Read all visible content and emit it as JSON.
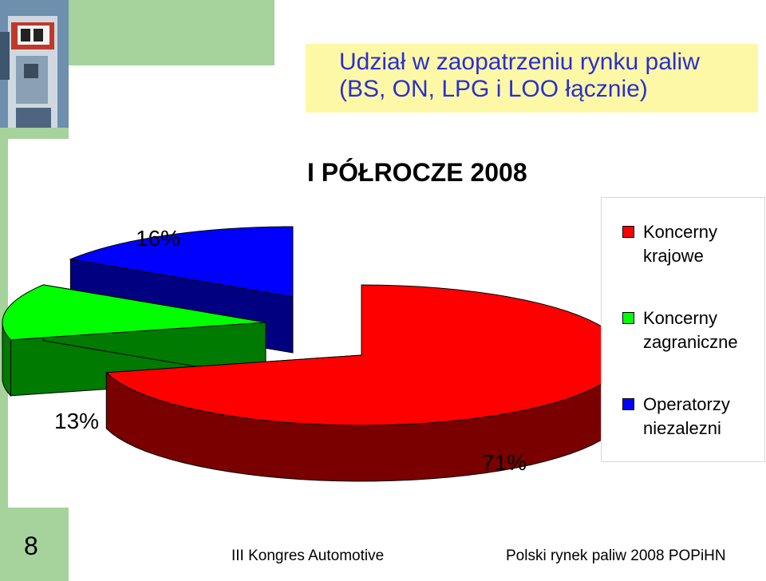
{
  "title": {
    "line1": "Udział w zaopatrzeniu rynku paliw",
    "line2": "(BS, ON, LPG i LOO łącznie)"
  },
  "subtitle": "I PÓŁROCZE 2008",
  "chart_data": {
    "type": "pie",
    "title": "Udział w zaopatrzeniu rynku paliw (BS, ON, LPG i LOO łącznie)",
    "subtitle": "I PÓŁROCZE 2008",
    "categories": [
      "Koncerny krajowe",
      "Koncerny zagraniczne",
      "Operatorzy niezalezni"
    ],
    "values": [
      71,
      13,
      16
    ],
    "labels": [
      "71%",
      "13%",
      "16%"
    ],
    "colors": [
      "#ff0000",
      "#00ff00",
      "#0000ff"
    ],
    "side_colors": [
      "#7a0000",
      "#007a00",
      "#000080"
    ],
    "legend_position": "right",
    "exploded": true,
    "three_d": true
  },
  "legend": {
    "items": [
      {
        "label_line1": "Koncerny",
        "label_line2": "krajowe",
        "color": "#ff0000"
      },
      {
        "label_line1": "Koncerny",
        "label_line2": "zagraniczne",
        "color": "#00ff00"
      },
      {
        "label_line1": "Operatorzy",
        "label_line2": "niezalezni",
        "color": "#0000ff"
      }
    ]
  },
  "footer": {
    "page_number": "8",
    "left_text": "III Kongres Automotive",
    "right_text": "Polski rynek paliw 2008  POPiHN"
  }
}
